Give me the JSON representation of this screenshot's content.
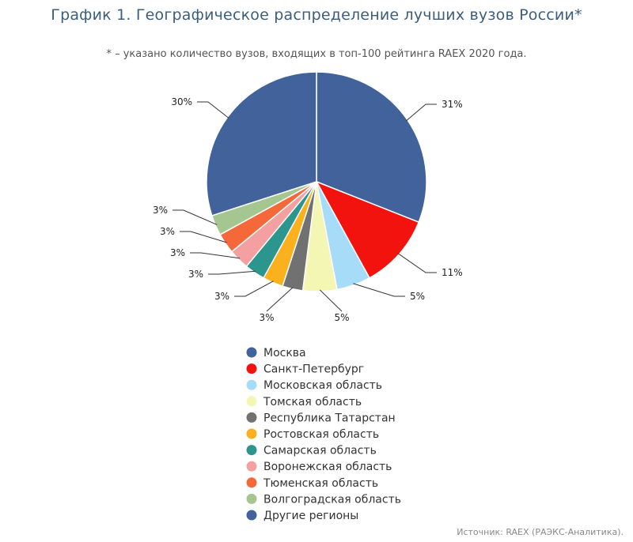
{
  "title": "График 1. Географическое распределение лучших вузов России*",
  "subtitle": "* – указано количество вузов, входящих в топ-100 рейтинга RAEX 2020 года.",
  "source": "Источник: RAEX (РАЭКС-Аналитика).",
  "chart_data": {
    "type": "pie",
    "start_angle_deg": 0,
    "direction": "clockwise",
    "slices": [
      {
        "name": "Москва",
        "label": "31%",
        "value": 31,
        "color": "#42629b"
      },
      {
        "name": "Санкт-Петербург",
        "label": "11%",
        "value": 11,
        "color": "#f2130e"
      },
      {
        "name": "Московская область",
        "label": "5%",
        "value": 5,
        "color": "#a6dcf8"
      },
      {
        "name": "Томская область",
        "label": "5%",
        "value": 5,
        "color": "#f4f7b3"
      },
      {
        "name": "Республика Татарстан",
        "label": "3%",
        "value": 3,
        "color": "#717171"
      },
      {
        "name": "Ростовская область",
        "label": "3%",
        "value": 3,
        "color": "#fbb11d"
      },
      {
        "name": "Самарская область",
        "label": "3%",
        "value": 3,
        "color": "#2c958e"
      },
      {
        "name": "Воронежская область",
        "label": "3%",
        "value": 3,
        "color": "#f4a0a0"
      },
      {
        "name": "Тюменская область",
        "label": "3%",
        "value": 3,
        "color": "#f4683a"
      },
      {
        "name": "Волгоградская область",
        "label": "3%",
        "value": 3,
        "color": "#a5c690"
      },
      {
        "name": "Другие регионы",
        "label": "30%",
        "value": 30,
        "color": "#42629b"
      }
    ],
    "legend_position": "bottom"
  }
}
